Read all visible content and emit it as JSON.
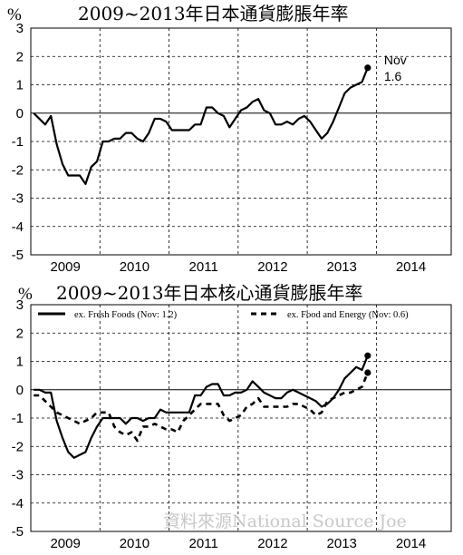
{
  "watermark": "資料來源National Source    Joe",
  "chart_data": [
    {
      "type": "line",
      "title": "2009~2013年日本通貨膨脹年率",
      "unit_label": "%",
      "ylim": [
        -5,
        3
      ],
      "yticks": [
        "3",
        "2",
        "1",
        "0",
        "-1",
        "-2",
        "-3",
        "-4",
        "-5"
      ],
      "xticks": [
        "2009",
        "2010",
        "2011",
        "2012",
        "2013",
        "2014"
      ],
      "grid": true,
      "series": [
        {
          "values": [
            {
              "x": "2009-01",
              "y": 0.0
            },
            {
              "x": "2009-02",
              "y": -0.2
            },
            {
              "x": "2009-03",
              "y": -0.4
            },
            {
              "x": "2009-04",
              "y": -0.1
            },
            {
              "x": "2009-05",
              "y": -1.1
            },
            {
              "x": "2009-06",
              "y": -1.8
            },
            {
              "x": "2009-07",
              "y": -2.2
            },
            {
              "x": "2009-08",
              "y": -2.2
            },
            {
              "x": "2009-09",
              "y": -2.2
            },
            {
              "x": "2009-10",
              "y": -2.5
            },
            {
              "x": "2009-11",
              "y": -1.9
            },
            {
              "x": "2009-12",
              "y": -1.7
            },
            {
              "x": "2010-01",
              "y": -1.0
            },
            {
              "x": "2010-02",
              "y": -1.0
            },
            {
              "x": "2010-03",
              "y": -0.9
            },
            {
              "x": "2010-04",
              "y": -0.9
            },
            {
              "x": "2010-05",
              "y": -0.7
            },
            {
              "x": "2010-06",
              "y": -0.7
            },
            {
              "x": "2010-07",
              "y": -0.9
            },
            {
              "x": "2010-08",
              "y": -1.0
            },
            {
              "x": "2010-09",
              "y": -0.7
            },
            {
              "x": "2010-10",
              "y": -0.2
            },
            {
              "x": "2010-11",
              "y": -0.2
            },
            {
              "x": "2010-12",
              "y": -0.3
            },
            {
              "x": "2011-01",
              "y": -0.6
            },
            {
              "x": "2011-02",
              "y": -0.6
            },
            {
              "x": "2011-03",
              "y": -0.6
            },
            {
              "x": "2011-04",
              "y": -0.6
            },
            {
              "x": "2011-05",
              "y": -0.4
            },
            {
              "x": "2011-06",
              "y": -0.4
            },
            {
              "x": "2011-07",
              "y": 0.2
            },
            {
              "x": "2011-08",
              "y": 0.2
            },
            {
              "x": "2011-09",
              "y": 0.0
            },
            {
              "x": "2011-10",
              "y": -0.1
            },
            {
              "x": "2011-11",
              "y": -0.5
            },
            {
              "x": "2011-12",
              "y": -0.2
            },
            {
              "x": "2012-01",
              "y": 0.1
            },
            {
              "x": "2012-02",
              "y": 0.2
            },
            {
              "x": "2012-03",
              "y": 0.4
            },
            {
              "x": "2012-04",
              "y": 0.5
            },
            {
              "x": "2012-05",
              "y": 0.1
            },
            {
              "x": "2012-06",
              "y": 0.0
            },
            {
              "x": "2012-07",
              "y": -0.4
            },
            {
              "x": "2012-08",
              "y": -0.4
            },
            {
              "x": "2012-09",
              "y": -0.3
            },
            {
              "x": "2012-10",
              "y": -0.4
            },
            {
              "x": "2012-11",
              "y": -0.2
            },
            {
              "x": "2012-12",
              "y": -0.1
            },
            {
              "x": "2013-01",
              "y": -0.3
            },
            {
              "x": "2013-02",
              "y": -0.6
            },
            {
              "x": "2013-03",
              "y": -0.9
            },
            {
              "x": "2013-04",
              "y": -0.7
            },
            {
              "x": "2013-05",
              "y": -0.3
            },
            {
              "x": "2013-06",
              "y": 0.2
            },
            {
              "x": "2013-07",
              "y": 0.7
            },
            {
              "x": "2013-08",
              "y": 0.9
            },
            {
              "x": "2013-09",
              "y": 1.0
            },
            {
              "x": "2013-10",
              "y": 1.1
            },
            {
              "x": "2013-11",
              "y": 1.6
            }
          ],
          "color": "#000000",
          "style": "solid"
        }
      ],
      "annotation": {
        "x": "2013-11",
        "y": 1.6,
        "line1": "Nov",
        "line2": "1.6"
      }
    },
    {
      "type": "line",
      "title": "2009~2013年日本核心通貨膨脹年率",
      "unit_label": "%",
      "ylim": [
        -5,
        3
      ],
      "yticks": [
        "3",
        "2",
        "1",
        "0",
        "-1",
        "-2",
        "-3",
        "-4",
        "-5"
      ],
      "xticks": [
        "2009",
        "2010",
        "2011",
        "2012",
        "2013",
        "2014"
      ],
      "grid": true,
      "legend_position": "top",
      "series": [
        {
          "name": "ex. Fresh Foods (Nov: 1.2)",
          "color": "#000000",
          "style": "solid",
          "values": [
            {
              "x": "2009-01",
              "y": 0.0
            },
            {
              "x": "2009-02",
              "y": 0.0
            },
            {
              "x": "2009-03",
              "y": -0.1
            },
            {
              "x": "2009-04",
              "y": -0.1
            },
            {
              "x": "2009-05",
              "y": -1.1
            },
            {
              "x": "2009-06",
              "y": -1.7
            },
            {
              "x": "2009-07",
              "y": -2.2
            },
            {
              "x": "2009-08",
              "y": -2.4
            },
            {
              "x": "2009-09",
              "y": -2.3
            },
            {
              "x": "2009-10",
              "y": -2.2
            },
            {
              "x": "2009-11",
              "y": -1.7
            },
            {
              "x": "2009-12",
              "y": -1.3
            },
            {
              "x": "2010-01",
              "y": -1.0
            },
            {
              "x": "2010-02",
              "y": -1.0
            },
            {
              "x": "2010-03",
              "y": -1.0
            },
            {
              "x": "2010-04",
              "y": -1.0
            },
            {
              "x": "2010-05",
              "y": -1.2
            },
            {
              "x": "2010-06",
              "y": -1.0
            },
            {
              "x": "2010-07",
              "y": -1.0
            },
            {
              "x": "2010-08",
              "y": -1.1
            },
            {
              "x": "2010-09",
              "y": -1.0
            },
            {
              "x": "2010-10",
              "y": -1.0
            },
            {
              "x": "2010-11",
              "y": -0.7
            },
            {
              "x": "2010-12",
              "y": -0.8
            },
            {
              "x": "2011-01",
              "y": -0.8
            },
            {
              "x": "2011-02",
              "y": -0.8
            },
            {
              "x": "2011-03",
              "y": -0.8
            },
            {
              "x": "2011-04",
              "y": -0.8
            },
            {
              "x": "2011-05",
              "y": -0.2
            },
            {
              "x": "2011-06",
              "y": -0.2
            },
            {
              "x": "2011-07",
              "y": 0.1
            },
            {
              "x": "2011-08",
              "y": 0.2
            },
            {
              "x": "2011-09",
              "y": 0.2
            },
            {
              "x": "2011-10",
              "y": -0.2
            },
            {
              "x": "2011-11",
              "y": -0.2
            },
            {
              "x": "2011-12",
              "y": -0.1
            },
            {
              "x": "2012-01",
              "y": -0.1
            },
            {
              "x": "2012-02",
              "y": 0.0
            },
            {
              "x": "2012-03",
              "y": 0.3
            },
            {
              "x": "2012-04",
              "y": 0.1
            },
            {
              "x": "2012-05",
              "y": -0.1
            },
            {
              "x": "2012-06",
              "y": -0.2
            },
            {
              "x": "2012-07",
              "y": -0.3
            },
            {
              "x": "2012-08",
              "y": -0.3
            },
            {
              "x": "2012-09",
              "y": -0.1
            },
            {
              "x": "2012-10",
              "y": 0.0
            },
            {
              "x": "2012-11",
              "y": -0.1
            },
            {
              "x": "2012-12",
              "y": -0.2
            },
            {
              "x": "2013-01",
              "y": -0.3
            },
            {
              "x": "2013-02",
              "y": -0.4
            },
            {
              "x": "2013-03",
              "y": -0.6
            },
            {
              "x": "2013-04",
              "y": -0.5
            },
            {
              "x": "2013-05",
              "y": -0.3
            },
            {
              "x": "2013-06",
              "y": 0.0
            },
            {
              "x": "2013-07",
              "y": 0.4
            },
            {
              "x": "2013-08",
              "y": 0.6
            },
            {
              "x": "2013-09",
              "y": 0.8
            },
            {
              "x": "2013-10",
              "y": 0.7
            },
            {
              "x": "2013-11",
              "y": 1.2
            }
          ]
        },
        {
          "name": "ex. Food and Energy (Nov: 0.6)",
          "color": "#000000",
          "style": "dashed",
          "values": [
            {
              "x": "2009-01",
              "y": -0.2
            },
            {
              "x": "2009-02",
              "y": -0.2
            },
            {
              "x": "2009-03",
              "y": -0.4
            },
            {
              "x": "2009-04",
              "y": -0.6
            },
            {
              "x": "2009-05",
              "y": -0.8
            },
            {
              "x": "2009-06",
              "y": -0.9
            },
            {
              "x": "2009-07",
              "y": -1.0
            },
            {
              "x": "2009-08",
              "y": -1.1
            },
            {
              "x": "2009-09",
              "y": -1.2
            },
            {
              "x": "2009-10",
              "y": -1.1
            },
            {
              "x": "2009-11",
              "y": -1.0
            },
            {
              "x": "2009-12",
              "y": -0.8
            },
            {
              "x": "2010-01",
              "y": -0.8
            },
            {
              "x": "2010-02",
              "y": -0.8
            },
            {
              "x": "2010-03",
              "y": -1.3
            },
            {
              "x": "2010-04",
              "y": -1.5
            },
            {
              "x": "2010-05",
              "y": -1.6
            },
            {
              "x": "2010-06",
              "y": -1.5
            },
            {
              "x": "2010-07",
              "y": -1.8
            },
            {
              "x": "2010-08",
              "y": -1.3
            },
            {
              "x": "2010-09",
              "y": -1.3
            },
            {
              "x": "2010-10",
              "y": -1.2
            },
            {
              "x": "2010-11",
              "y": -1.3
            },
            {
              "x": "2010-12",
              "y": -1.4
            },
            {
              "x": "2011-01",
              "y": -1.4
            },
            {
              "x": "2011-02",
              "y": -1.5
            },
            {
              "x": "2011-03",
              "y": -1.1
            },
            {
              "x": "2011-04",
              "y": -0.9
            },
            {
              "x": "2011-05",
              "y": -0.7
            },
            {
              "x": "2011-06",
              "y": -0.5
            },
            {
              "x": "2011-07",
              "y": -0.5
            },
            {
              "x": "2011-08",
              "y": -0.5
            },
            {
              "x": "2011-09",
              "y": -0.5
            },
            {
              "x": "2011-10",
              "y": -0.9
            },
            {
              "x": "2011-11",
              "y": -1.1
            },
            {
              "x": "2011-12",
              "y": -1.0
            },
            {
              "x": "2012-01",
              "y": -0.9
            },
            {
              "x": "2012-02",
              "y": -0.6
            },
            {
              "x": "2012-03",
              "y": -0.5
            },
            {
              "x": "2012-04",
              "y": -0.3
            },
            {
              "x": "2012-05",
              "y": -0.6
            },
            {
              "x": "2012-06",
              "y": -0.6
            },
            {
              "x": "2012-07",
              "y": -0.6
            },
            {
              "x": "2012-08",
              "y": -0.6
            },
            {
              "x": "2012-09",
              "y": -0.6
            },
            {
              "x": "2012-10",
              "y": -0.5
            },
            {
              "x": "2012-11",
              "y": -0.5
            },
            {
              "x": "2012-12",
              "y": -0.6
            },
            {
              "x": "2013-01",
              "y": -0.7
            },
            {
              "x": "2013-02",
              "y": -0.9
            },
            {
              "x": "2013-03",
              "y": -0.8
            },
            {
              "x": "2013-04",
              "y": -0.4
            },
            {
              "x": "2013-05",
              "y": -0.3
            },
            {
              "x": "2013-06",
              "y": -0.2
            },
            {
              "x": "2013-07",
              "y": -0.1
            },
            {
              "x": "2013-08",
              "y": -0.1
            },
            {
              "x": "2013-09",
              "y": 0.0
            },
            {
              "x": "2013-10",
              "y": 0.1
            },
            {
              "x": "2013-11",
              "y": 0.6
            }
          ]
        }
      ]
    }
  ]
}
